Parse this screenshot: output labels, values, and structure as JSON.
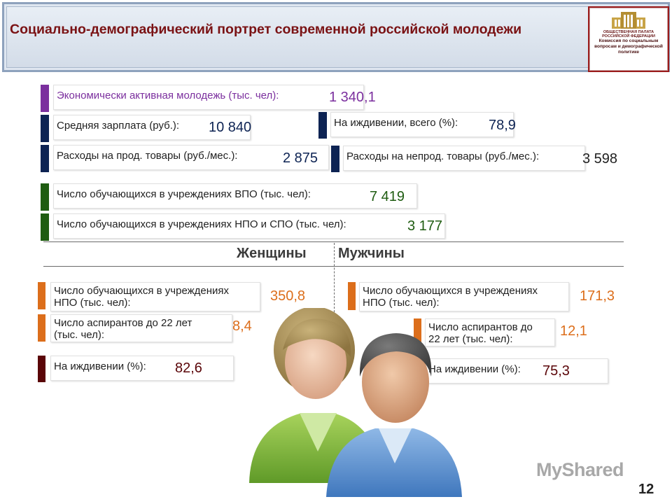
{
  "header": {
    "title": "Социально-демографический портрет современной российской молодежи",
    "logo_name": "ОБЩЕСТВЕННАЯ ПАЛАТА РОССИЙСКОЙ ФЕДЕРАЦИИ",
    "logo_caption": "Комиссия по социальным вопросам и демографической политике"
  },
  "colors": {
    "purple": "#7b2f9e",
    "navy": "#0d2353",
    "green": "#1f5c11",
    "orange": "#dc6e1b",
    "maroon": "#5a0508",
    "title": "#7a1214"
  },
  "stats": {
    "econ": {
      "label": "Экономически активная молодежь (тыс. чел):",
      "value": "1 340,1"
    },
    "salary": {
      "label": "Средняя зарплата (руб.):",
      "value": "10 840"
    },
    "dependent": {
      "label": "На иждивении, всего (%):",
      "value": "78,9"
    },
    "food": {
      "label": "Расходы на прод. товары (руб./мес.):",
      "value": "2 875"
    },
    "nonfood": {
      "label": "Расходы на непрод. товары (руб./мес.):",
      "value": "3 598"
    },
    "vpo": {
      "label": "Число обучающихся в учреждениях ВПО (тыс. чел):",
      "value": "7 419"
    },
    "npo_spo": {
      "label": "Число обучающихся в учреждениях НПО и СПО (тыс. чел):",
      "value": "3 177"
    }
  },
  "gender": {
    "women": "Женщины",
    "men": "Мужчины"
  },
  "women": {
    "npo": {
      "line1": "Число обучающихся в учреждениях",
      "line2": "НПО (тыс. чел):",
      "value": "350,8"
    },
    "grad": {
      "line1": "Число аспирантов до 22 лет",
      "line2": "(тыс. чел):",
      "value": "8,4"
    },
    "dep": {
      "label": "На иждивении (%):",
      "value": "82,6"
    }
  },
  "men": {
    "npo": {
      "line1": "Число обучающихся в учреждениях",
      "line2": "НПО (тыс. чел):",
      "value": "171,3"
    },
    "grad": {
      "line1": "Число аспирантов до",
      "line2": "22 лет (тыс. чел):",
      "value": "12,1"
    },
    "dep": {
      "label": "На иждивении (%):",
      "value": "75,3"
    }
  },
  "watermark": "MyShared",
  "page_number": "12"
}
